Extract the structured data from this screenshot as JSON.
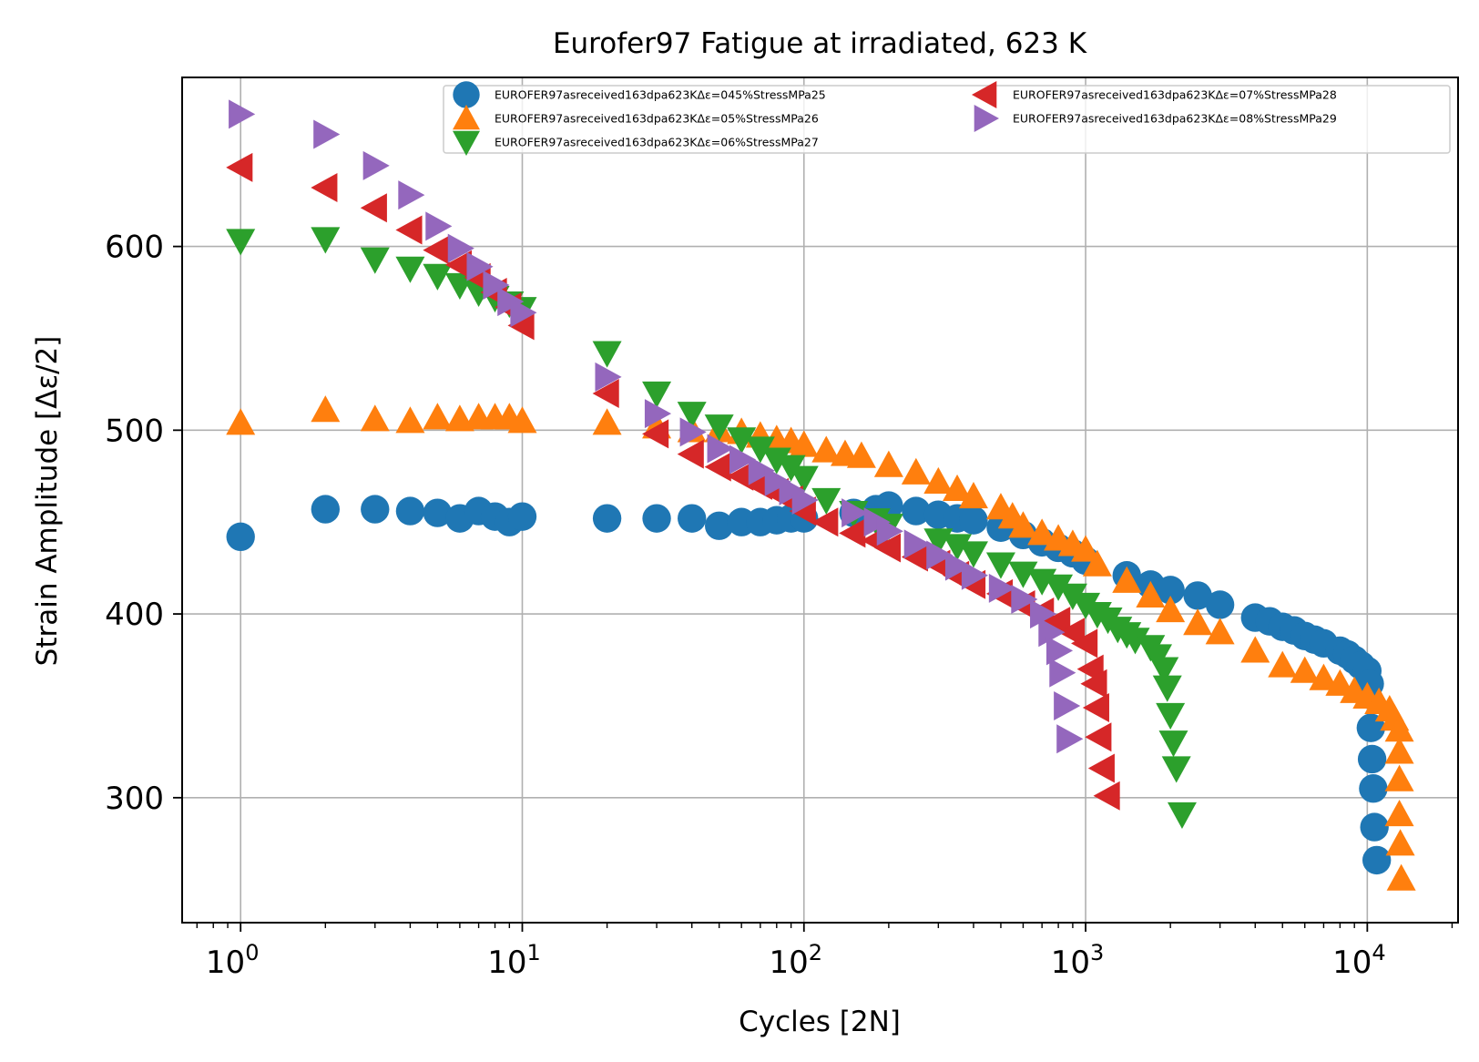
{
  "chart_data": {
    "type": "scatter",
    "title": "Eurofer97 Fatigue at irradiated, 623 K",
    "xlabel": "Cycles [2N]",
    "ylabel": "Strain Amplitude [Δε/2]",
    "xscale": "log",
    "xlim": [
      0.62,
      21000
    ],
    "ylim": [
      232,
      692
    ],
    "x_ticks": [
      1,
      10,
      100,
      1000,
      10000
    ],
    "x_tick_labels": [
      {
        "base": "10",
        "exp": "0"
      },
      {
        "base": "10",
        "exp": "1"
      },
      {
        "base": "10",
        "exp": "2"
      },
      {
        "base": "10",
        "exp": "3"
      },
      {
        "base": "10",
        "exp": "4"
      }
    ],
    "y_ticks": [
      300,
      400,
      500,
      600
    ],
    "y_tick_labels": [
      "300",
      "400",
      "500",
      "600"
    ],
    "grid": true,
    "legend_position": "upper right",
    "legend_columns": 2,
    "series": [
      {
        "name": "EUROFER97asreceived163dpa623KΔε=045%StressMPa25",
        "marker": "circle",
        "color": "#1f77b4",
        "points": [
          [
            1,
            442
          ],
          [
            2,
            457
          ],
          [
            3,
            457
          ],
          [
            4,
            456
          ],
          [
            5,
            455
          ],
          [
            6,
            452
          ],
          [
            7,
            456
          ],
          [
            8,
            453
          ],
          [
            9,
            450
          ],
          [
            10,
            453
          ],
          [
            20,
            452
          ],
          [
            30,
            452
          ],
          [
            40,
            452
          ],
          [
            50,
            448
          ],
          [
            60,
            450
          ],
          [
            70,
            450
          ],
          [
            80,
            451
          ],
          [
            90,
            452
          ],
          [
            100,
            452
          ],
          [
            150,
            455
          ],
          [
            180,
            457
          ],
          [
            200,
            459
          ],
          [
            250,
            456
          ],
          [
            300,
            454
          ],
          [
            350,
            452
          ],
          [
            400,
            451
          ],
          [
            500,
            447
          ],
          [
            600,
            443
          ],
          [
            700,
            439
          ],
          [
            800,
            436
          ],
          [
            900,
            433
          ],
          [
            1000,
            429
          ],
          [
            1400,
            421
          ],
          [
            1700,
            416
          ],
          [
            2000,
            413
          ],
          [
            2500,
            410
          ],
          [
            3000,
            405
          ],
          [
            4000,
            398
          ],
          [
            4500,
            396
          ],
          [
            5000,
            393
          ],
          [
            5500,
            391
          ],
          [
            6000,
            388
          ],
          [
            6500,
            386
          ],
          [
            7000,
            384
          ],
          [
            8000,
            380
          ],
          [
            8500,
            378
          ],
          [
            9000,
            375
          ],
          [
            9500,
            372
          ],
          [
            10000,
            369
          ],
          [
            10200,
            362
          ],
          [
            10300,
            338
          ],
          [
            10400,
            321
          ],
          [
            10500,
            305
          ],
          [
            10600,
            284
          ],
          [
            10800,
            266
          ]
        ]
      },
      {
        "name": "EUROFER97asreceived163dpa623KΔε=05%StressMPa26",
        "marker": "triangle-up",
        "color": "#ff7f0e",
        "points": [
          [
            1,
            504
          ],
          [
            2,
            511
          ],
          [
            3,
            506
          ],
          [
            4,
            505
          ],
          [
            5,
            507
          ],
          [
            6,
            506
          ],
          [
            7,
            507
          ],
          [
            8,
            507
          ],
          [
            9,
            507
          ],
          [
            10,
            505
          ],
          [
            20,
            504
          ],
          [
            30,
            502
          ],
          [
            40,
            500
          ],
          [
            50,
            500
          ],
          [
            60,
            499
          ],
          [
            70,
            497
          ],
          [
            80,
            495
          ],
          [
            90,
            494
          ],
          [
            100,
            492
          ],
          [
            120,
            489
          ],
          [
            140,
            487
          ],
          [
            160,
            486
          ],
          [
            200,
            481
          ],
          [
            250,
            477
          ],
          [
            300,
            472
          ],
          [
            350,
            468
          ],
          [
            400,
            464
          ],
          [
            500,
            458
          ],
          [
            550,
            453
          ],
          [
            600,
            448
          ],
          [
            700,
            444
          ],
          [
            800,
            441
          ],
          [
            900,
            438
          ],
          [
            1000,
            435
          ],
          [
            1100,
            427
          ],
          [
            1400,
            418
          ],
          [
            1700,
            410
          ],
          [
            2000,
            402
          ],
          [
            2500,
            395
          ],
          [
            3000,
            390
          ],
          [
            4000,
            380
          ],
          [
            5000,
            372
          ],
          [
            6000,
            369
          ],
          [
            7000,
            365
          ],
          [
            8000,
            362
          ],
          [
            9000,
            358
          ],
          [
            10000,
            355
          ],
          [
            11000,
            352
          ],
          [
            12000,
            348
          ],
          [
            12500,
            343
          ],
          [
            13000,
            337
          ],
          [
            13000,
            325
          ],
          [
            13000,
            310
          ],
          [
            13000,
            291
          ],
          [
            13100,
            275
          ],
          [
            13200,
            256
          ]
        ]
      },
      {
        "name": "EUROFER97asreceived163dpa623KΔε=06%StressMPa27",
        "marker": "triangle-down",
        "color": "#2ca02c",
        "points": [
          [
            1,
            603
          ],
          [
            2,
            604
          ],
          [
            3,
            593
          ],
          [
            4,
            588
          ],
          [
            5,
            584
          ],
          [
            6,
            579
          ],
          [
            7,
            575
          ],
          [
            8,
            572
          ],
          [
            9,
            569
          ],
          [
            10,
            566
          ],
          [
            20,
            542
          ],
          [
            30,
            520
          ],
          [
            40,
            509
          ],
          [
            50,
            502
          ],
          [
            60,
            495
          ],
          [
            70,
            490
          ],
          [
            80,
            484
          ],
          [
            90,
            480
          ],
          [
            100,
            474
          ],
          [
            120,
            462
          ],
          [
            150,
            455
          ],
          [
            180,
            451
          ],
          [
            200,
            448
          ],
          [
            300,
            440
          ],
          [
            350,
            437
          ],
          [
            400,
            433
          ],
          [
            500,
            427
          ],
          [
            600,
            422
          ],
          [
            700,
            418
          ],
          [
            800,
            415
          ],
          [
            900,
            410
          ],
          [
            1000,
            405
          ],
          [
            1100,
            400
          ],
          [
            1200,
            397
          ],
          [
            1300,
            392
          ],
          [
            1400,
            389
          ],
          [
            1500,
            386
          ],
          [
            1700,
            382
          ],
          [
            1800,
            377
          ],
          [
            1900,
            370
          ],
          [
            1950,
            360
          ],
          [
            2000,
            345
          ],
          [
            2050,
            330
          ],
          [
            2100,
            316
          ],
          [
            2200,
            291
          ]
        ]
      },
      {
        "name": "EUROFER97asreceived163dpa623KΔε=07%StressMPa28",
        "marker": "triangle-left",
        "color": "#d62728",
        "points": [
          [
            1,
            643
          ],
          [
            2,
            632
          ],
          [
            3,
            621
          ],
          [
            4,
            609
          ],
          [
            5,
            598
          ],
          [
            6,
            590
          ],
          [
            7,
            583
          ],
          [
            8,
            575
          ],
          [
            9,
            567
          ],
          [
            10,
            557
          ],
          [
            20,
            520
          ],
          [
            30,
            498
          ],
          [
            40,
            487
          ],
          [
            50,
            480
          ],
          [
            60,
            475
          ],
          [
            70,
            470
          ],
          [
            80,
            466
          ],
          [
            90,
            462
          ],
          [
            100,
            456
          ],
          [
            120,
            450
          ],
          [
            150,
            444
          ],
          [
            180,
            440
          ],
          [
            200,
            436
          ],
          [
            250,
            431
          ],
          [
            300,
            427
          ],
          [
            350,
            421
          ],
          [
            400,
            416
          ],
          [
            500,
            411
          ],
          [
            600,
            405
          ],
          [
            700,
            401
          ],
          [
            800,
            396
          ],
          [
            900,
            390
          ],
          [
            1000,
            384
          ],
          [
            1050,
            370
          ],
          [
            1080,
            362
          ],
          [
            1100,
            349
          ],
          [
            1120,
            333
          ],
          [
            1150,
            316
          ],
          [
            1200,
            301
          ]
        ]
      },
      {
        "name": "EUROFER97asreceived163dpa623KΔε=08%StressMPa29",
        "marker": "triangle-right",
        "color": "#9467bd",
        "points": [
          [
            1,
            672
          ],
          [
            2,
            661
          ],
          [
            3,
            644
          ],
          [
            4,
            628
          ],
          [
            5,
            611
          ],
          [
            6,
            599
          ],
          [
            7,
            589
          ],
          [
            8,
            579
          ],
          [
            9,
            570
          ],
          [
            10,
            564
          ],
          [
            20,
            529
          ],
          [
            30,
            509
          ],
          [
            40,
            499
          ],
          [
            50,
            490
          ],
          [
            60,
            484
          ],
          [
            70,
            478
          ],
          [
            80,
            472
          ],
          [
            90,
            467
          ],
          [
            100,
            462
          ],
          [
            150,
            455
          ],
          [
            180,
            450
          ],
          [
            200,
            445
          ],
          [
            250,
            438
          ],
          [
            300,
            432
          ],
          [
            350,
            426
          ],
          [
            400,
            421
          ],
          [
            500,
            414
          ],
          [
            600,
            408
          ],
          [
            700,
            400
          ],
          [
            750,
            390
          ],
          [
            800,
            380
          ],
          [
            820,
            368
          ],
          [
            850,
            350
          ],
          [
            870,
            332
          ]
        ]
      }
    ]
  }
}
